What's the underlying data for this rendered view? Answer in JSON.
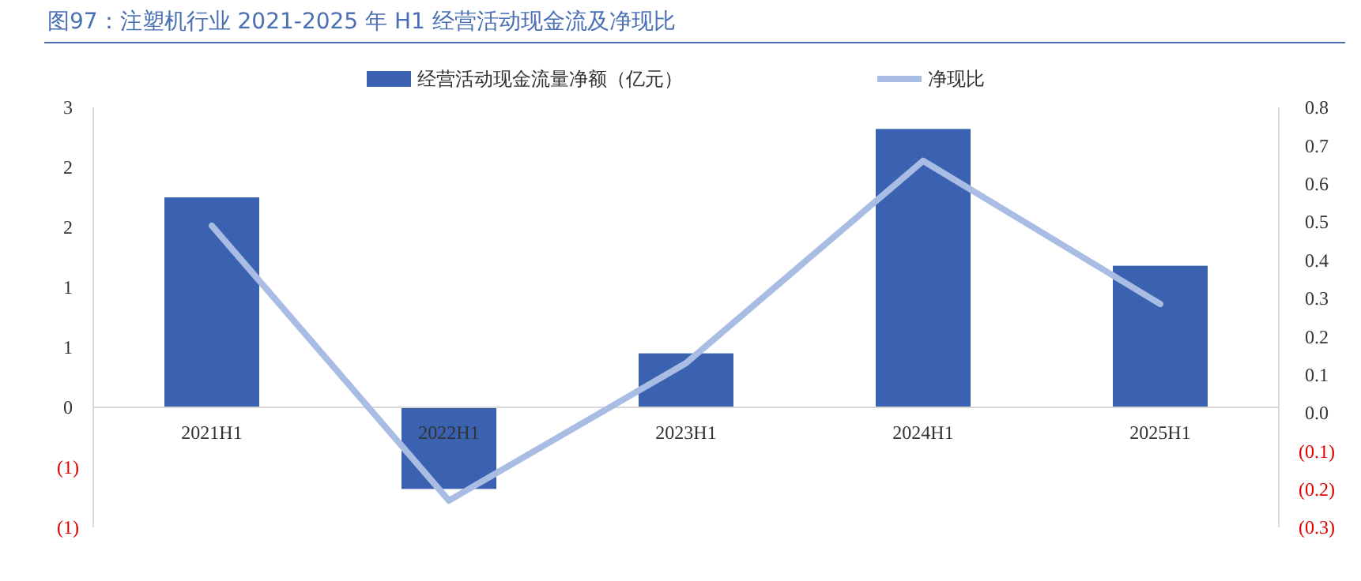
{
  "chart_data": {
    "type": "bar",
    "title": "图97：注塑机行业 2021-2025 年 H1 经营活动现金流及净现比",
    "categories": [
      "2021H1",
      "2022H1",
      "2023H1",
      "2024H1",
      "2025H1"
    ],
    "series": [
      {
        "name": "经营活动现金流量净额（亿元）",
        "color": "#3a62b0",
        "values": [
          1.75,
          -0.68,
          0.45,
          2.32,
          1.18
        ]
      },
      {
        "name": "净现比",
        "type": "line",
        "axis": "y2",
        "color": "#a9bce3",
        "values": [
          0.49,
          -0.23,
          0.13,
          0.66,
          0.285
        ]
      }
    ],
    "ylim": [
      -1,
      2.5
    ],
    "yticks": [
      {
        "value": -1,
        "label": "(1)"
      },
      {
        "value": -0.5,
        "label": "(1)"
      },
      0,
      {
        "value": 0.5,
        "label": "1"
      },
      1,
      {
        "value": 1.5,
        "label": "2"
      },
      2,
      {
        "value": 2.5,
        "label": "3"
      }
    ],
    "y2lim": [
      -0.3,
      0.8
    ],
    "y2ticks": [
      {
        "value": -0.3,
        "label": "(0.3)"
      },
      {
        "value": -0.2,
        "label": "(0.2)"
      },
      {
        "value": -0.1,
        "label": "(0.1)"
      },
      {
        "value": 0,
        "label": "0.0"
      },
      0.1,
      0.2,
      0.3,
      0.4,
      0.5,
      0.6,
      0.7,
      0.8
    ],
    "legend": "top",
    "grid": false
  }
}
